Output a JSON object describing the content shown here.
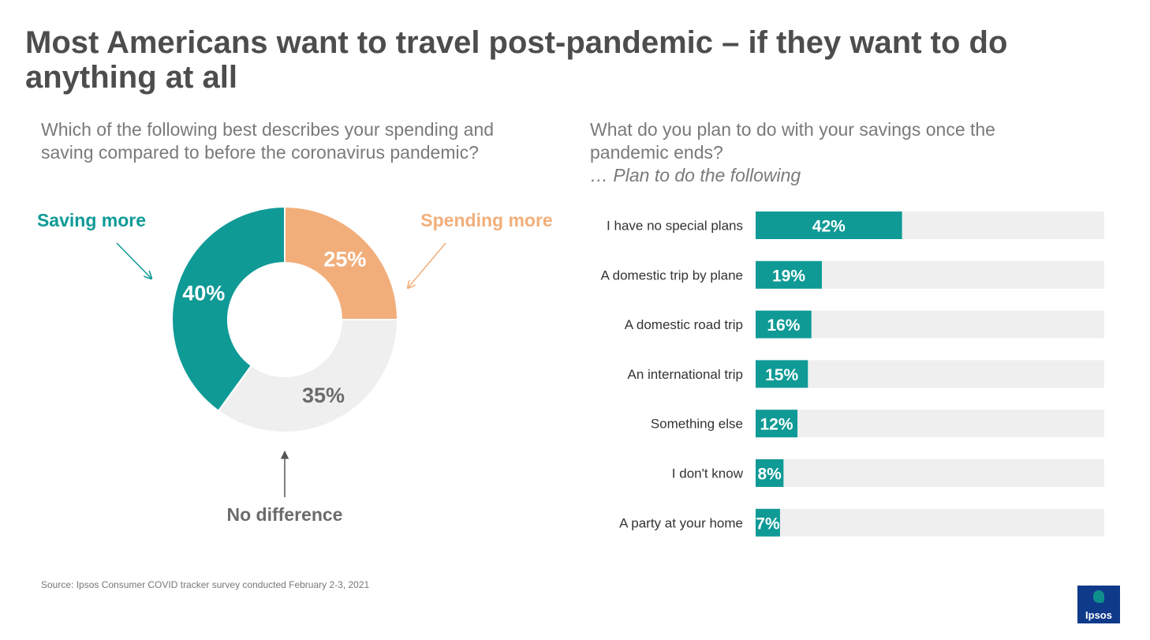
{
  "title": "Most Americans want to travel post-pandemic – if they want to do anything at all",
  "left_question": "Which of the following best describes your spending and saving compared to before the coronavirus pandemic?",
  "right_question": "What do you plan to do with your savings once the pandemic ends?",
  "right_subtitle": "… Plan to do the following",
  "source": "Source: Ipsos Consumer COVID tracker survey conducted February 2-3, 2021",
  "logo_text": "Ipsos",
  "colors": {
    "teal": "#0f9a96",
    "orange": "#f2ae7a",
    "light_gray": "#efefef",
    "dark_gray": "#6b6b6b",
    "title_gray": "#4d4d4d"
  },
  "chart_data": [
    {
      "type": "pie",
      "variant": "donut",
      "slices": [
        {
          "label": "Spending more",
          "value": 25,
          "display": "25%",
          "color": "#f2ae7a"
        },
        {
          "label": "No difference",
          "value": 35,
          "display": "35%",
          "color": "#efefef"
        },
        {
          "label": "Saving more",
          "value": 40,
          "display": "40%",
          "color": "#0f9a96"
        }
      ]
    },
    {
      "type": "bar",
      "orientation": "horizontal",
      "categories": [
        "I have no special plans",
        "A domestic trip by plane",
        "A domestic road trip",
        "An international trip",
        "Something else",
        "I don't know",
        "A party at your home"
      ],
      "values": [
        42,
        19,
        16,
        15,
        12,
        8,
        7
      ],
      "value_labels": [
        "42%",
        "19%",
        "16%",
        "15%",
        "12%",
        "8%",
        "7%"
      ],
      "xlim": [
        0,
        100
      ],
      "bar_color": "#0f9a96",
      "track_color": "#efefef"
    }
  ]
}
